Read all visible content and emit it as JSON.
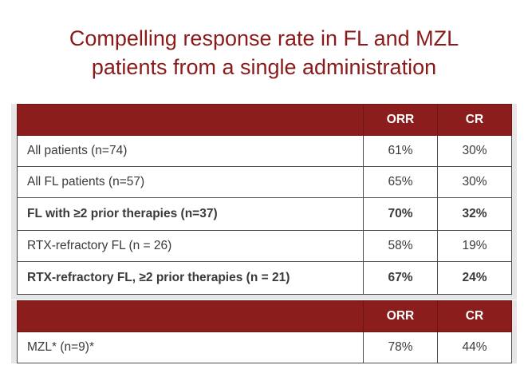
{
  "title": {
    "line1": "Compelling response rate in FL and MZL",
    "line2": "patients from a single administration"
  },
  "table1": {
    "headers": [
      "",
      "ORR",
      "CR"
    ],
    "rows": [
      {
        "label": "All patients (n=74)",
        "orr": "61%",
        "cr": "30%"
      },
      {
        "label": "All FL patients (n=57)",
        "orr": "65%",
        "cr": "30%"
      },
      {
        "label": "FL with ≥2 prior therapies (n=37)",
        "orr": "70%",
        "cr": "32%"
      },
      {
        "label": "RTX-refractory FL (n = 26)",
        "orr": "58%",
        "cr": "19%"
      },
      {
        "label": "RTX-refractory FL, ≥2 prior therapies  (n = 21)",
        "orr": "67%",
        "cr": "24%"
      }
    ]
  },
  "table2": {
    "headers": [
      "",
      "ORR",
      "CR"
    ],
    "rows": [
      {
        "label": "MZL* (n=9)*",
        "orr": "78%",
        "cr": "44%"
      }
    ]
  }
}
